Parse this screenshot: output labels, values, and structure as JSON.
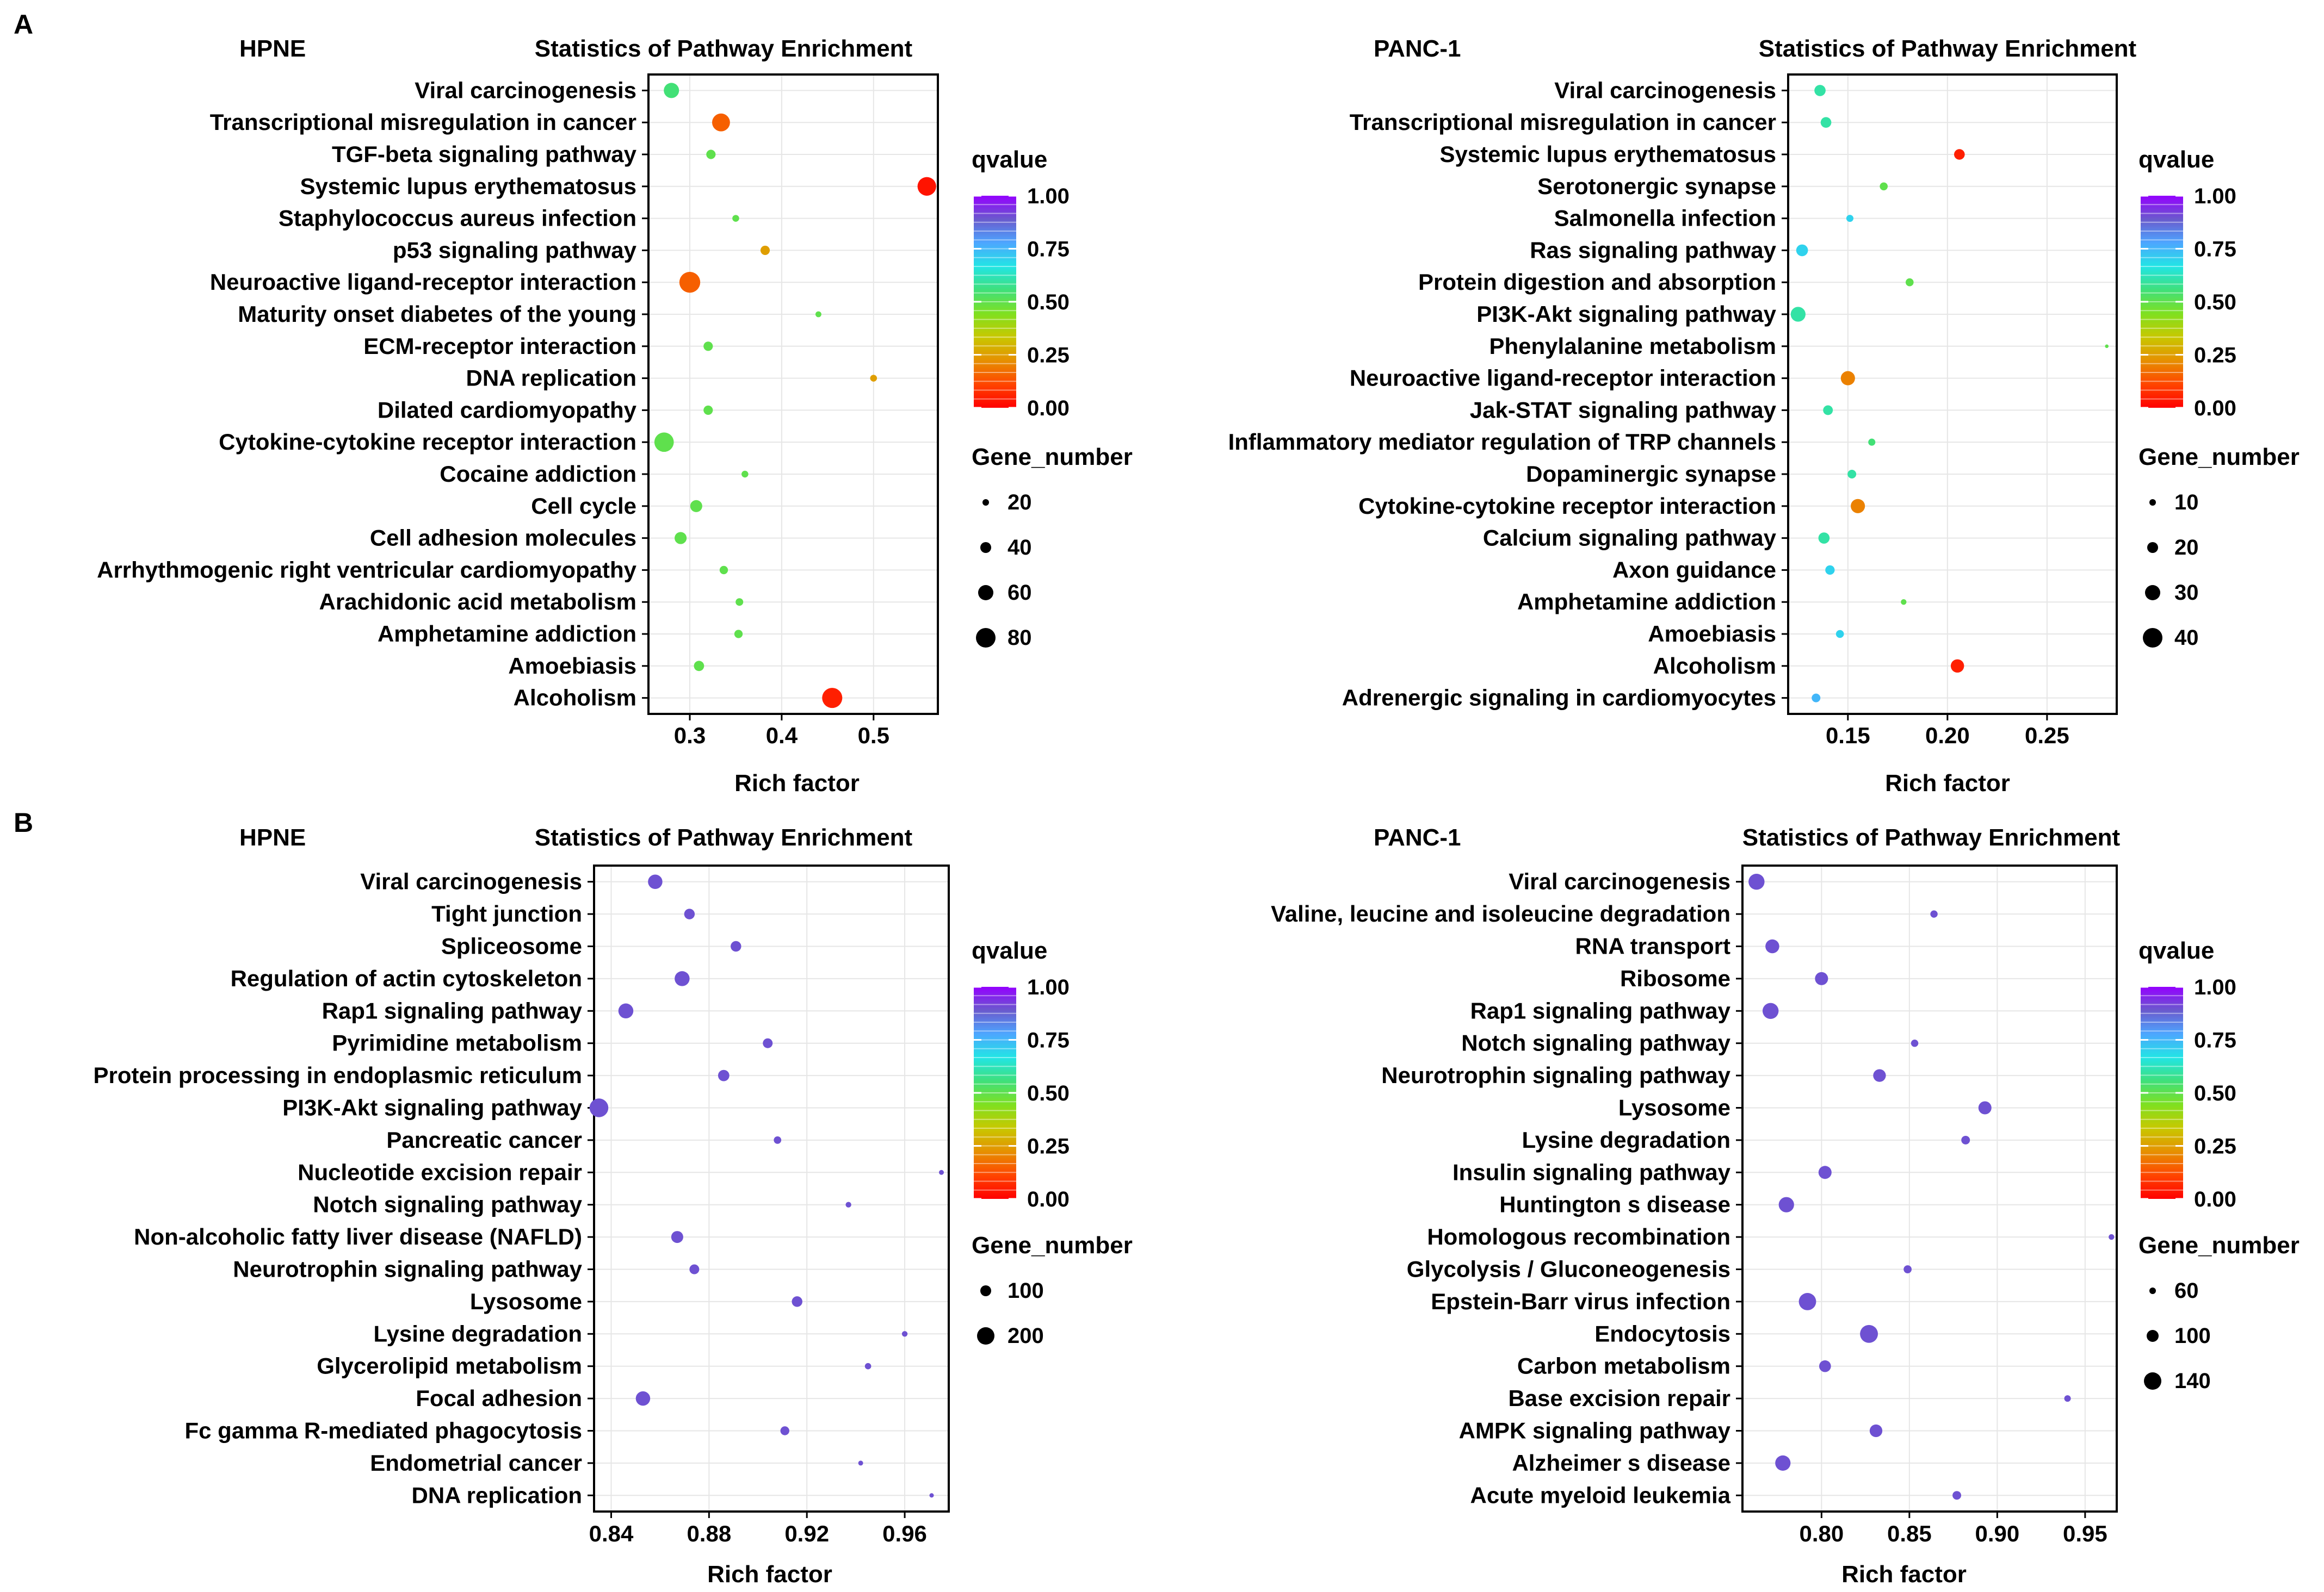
{
  "panels": [
    "A",
    "B"
  ],
  "colorbar": {
    "title": "qvalue",
    "ticks": [
      "1.00",
      "0.75",
      "0.50",
      "0.25",
      "0.00"
    ],
    "gradient": [
      "#9400FF",
      "#6A5ACD",
      "#4DA6FF",
      "#22E5E5",
      "#3FE07A",
      "#7FE020",
      "#C8C800",
      "#E69000",
      "#FF4500",
      "#FF0000"
    ]
  },
  "chart_data": [
    {
      "type": "scatter",
      "panel": "A",
      "cell": "HPNE",
      "title": "Statistics of Pathway Enrichment",
      "xlabel": "Rich factor",
      "xlim": [
        0.255,
        0.57
      ],
      "xticks": [
        0.3,
        0.4,
        0.5
      ],
      "xtick_labels": [
        "0.3",
        "0.4",
        "0.5"
      ],
      "size_legend_title": "Gene_number",
      "size_legend": [
        20,
        40,
        60,
        80
      ],
      "size_range": [
        5,
        90
      ],
      "categories": [
        "Viral carcinogenesis",
        "Transcriptional misregulation in cancer",
        "TGF-beta signaling pathway",
        "Systemic lupus erythematosus",
        "Staphylococcus aureus infection",
        "p53 signaling pathway",
        "Neuroactive ligand-receptor interaction",
        "Maturity onset diabetes of the young",
        "ECM-receptor interaction",
        "DNA replication",
        "Dilated cardiomyopathy",
        "Cytokine-cytokine receptor interaction",
        "Cocaine addiction",
        "Cell cycle",
        "Cell adhesion molecules",
        "Arrhythmogenic right ventricular cardiomyopathy",
        "Arachidonic acid metabolism",
        "Amphetamine addiction",
        "Amoebiasis",
        "Alcoholism"
      ],
      "rich_factor": [
        0.28,
        0.334,
        0.323,
        0.558,
        0.35,
        0.382,
        0.3,
        0.44,
        0.32,
        0.5,
        0.32,
        0.272,
        0.36,
        0.307,
        0.29,
        0.337,
        0.354,
        0.353,
        0.31,
        0.455
      ],
      "qvalue": [
        0.55,
        0.15,
        0.5,
        0.03,
        0.5,
        0.25,
        0.15,
        0.5,
        0.5,
        0.25,
        0.5,
        0.5,
        0.5,
        0.5,
        0.5,
        0.5,
        0.5,
        0.5,
        0.5,
        0.05
      ],
      "gene_number": [
        40,
        55,
        15,
        60,
        8,
        15,
        75,
        6,
        15,
        8,
        15,
        65,
        8,
        25,
        25,
        12,
        10,
        12,
        18,
        70
      ]
    },
    {
      "type": "scatter",
      "panel": "A",
      "cell": "PANC-1",
      "title": "Statistics of Pathway Enrichment",
      "xlabel": "Rich factor",
      "xlim": [
        0.12,
        0.285
      ],
      "xticks": [
        0.15,
        0.2,
        0.25
      ],
      "xtick_labels": [
        "0.15",
        "0.20",
        "0.25"
      ],
      "size_legend_title": "Gene_number",
      "size_legend": [
        10,
        20,
        30,
        40
      ],
      "size_range": [
        2,
        48
      ],
      "categories": [
        "Viral carcinogenesis",
        "Transcriptional misregulation in cancer",
        "Systemic lupus erythematosus",
        "Serotonergic synapse",
        "Salmonella infection",
        "Ras signaling pathway",
        "Protein digestion and absorption",
        "PI3K-Akt signaling pathway",
        "Phenylalanine metabolism",
        "Neuroactive ligand-receptor interaction",
        "Jak-STAT signaling pathway",
        "Inflammatory mediator regulation of TRP channels",
        "Dopaminergic synapse",
        "Cytokine-cytokine receptor interaction",
        "Calcium signaling pathway",
        "Axon guidance",
        "Amphetamine addiction",
        "Amoebiasis",
        "Alcoholism",
        "Adrenergic signaling in cardiomyocytes"
      ],
      "rich_factor": [
        0.136,
        0.139,
        0.206,
        0.168,
        0.151,
        0.127,
        0.181,
        0.125,
        0.28,
        0.15,
        0.14,
        0.162,
        0.152,
        0.155,
        0.138,
        0.141,
        0.178,
        0.146,
        0.205,
        0.134
      ],
      "qvalue": [
        0.6,
        0.6,
        0.05,
        0.5,
        0.7,
        0.7,
        0.5,
        0.6,
        0.5,
        0.2,
        0.6,
        0.55,
        0.6,
        0.2,
        0.6,
        0.7,
        0.5,
        0.7,
        0.05,
        0.75
      ],
      "gene_number": [
        20,
        18,
        18,
        10,
        8,
        22,
        10,
        35,
        2,
        32,
        15,
        8,
        12,
        32,
        20,
        14,
        5,
        10,
        28,
        12
      ]
    },
    {
      "type": "scatter",
      "panel": "B",
      "cell": "HPNE",
      "title": "Statistics of Pathway Enrichment",
      "xlabel": "Rich factor",
      "xlim": [
        0.833,
        0.978
      ],
      "xticks": [
        0.84,
        0.88,
        0.92,
        0.96
      ],
      "xtick_labels": [
        "0.84",
        "0.88",
        "0.92",
        "0.96"
      ],
      "size_legend_title": "Gene_number",
      "size_legend": [
        100,
        200
      ],
      "size_range": [
        3,
        240
      ],
      "categories": [
        "Viral carcinogenesis",
        "Tight junction",
        "Spliceosome",
        "Regulation of actin cytoskeleton",
        "Rap1 signaling pathway",
        "Pyrimidine metabolism",
        "Protein processing in endoplasmic reticulum",
        "PI3K-Akt signaling pathway",
        "Pancreatic cancer",
        "Nucleotide excision repair",
        "Notch signaling pathway",
        "Non-alcoholic fatty liver disease (NAFLD)",
        "Neurotrophin signaling pathway",
        "Lysosome",
        "Lysine degradation",
        "Glycerolipid metabolism",
        "Focal adhesion",
        "Fc gamma R-mediated phagocytosis",
        "Endometrial cancer",
        "DNA replication"
      ],
      "rich_factor": [
        0.858,
        0.872,
        0.891,
        0.869,
        0.846,
        0.904,
        0.886,
        0.835,
        0.908,
        0.975,
        0.937,
        0.867,
        0.874,
        0.916,
        0.96,
        0.945,
        0.853,
        0.911,
        0.942,
        0.971
      ],
      "qvalue": [
        0.9,
        0.9,
        0.9,
        0.9,
        0.9,
        0.9,
        0.9,
        0.9,
        0.9,
        0.9,
        0.9,
        0.9,
        0.9,
        0.9,
        0.9,
        0.9,
        0.9,
        0.9,
        0.9,
        0.9
      ],
      "gene_number": [
        130,
        70,
        70,
        140,
        140,
        60,
        80,
        220,
        35,
        15,
        20,
        90,
        60,
        70,
        20,
        25,
        130,
        50,
        15,
        12
      ]
    },
    {
      "type": "scatter",
      "panel": "B",
      "cell": "PANC-1",
      "title": "Statistics of Pathway Enrichment",
      "xlabel": "Rich factor",
      "xlim": [
        0.755,
        0.968
      ],
      "xticks": [
        0.8,
        0.85,
        0.9,
        0.95
      ],
      "xtick_labels": [
        "0.80",
        "0.85",
        "0.90",
        "0.95"
      ],
      "size_legend_title": "Gene_number",
      "size_legend": [
        60,
        100,
        140
      ],
      "size_range": [
        15,
        160
      ],
      "categories": [
        "Viral carcinogenesis",
        "Valine, leucine and isoleucine degradation",
        "RNA transport",
        "Ribosome",
        "Rap1 signaling pathway",
        "Notch signaling pathway",
        "Neurotrophin signaling pathway",
        "Lysosome",
        "Lysine degradation",
        "Insulin signaling pathway",
        "Huntington s disease",
        "Homologous recombination",
        "Glycolysis / Gluconeogenesis",
        "Epstein-Barr virus infection",
        "Endocytosis",
        "Carbon metabolism",
        "Base excision repair",
        "AMPK signaling pathway",
        "Alzheimer s disease",
        "Acute myeloid leukemia"
      ],
      "rich_factor": [
        0.763,
        0.864,
        0.772,
        0.8,
        0.771,
        0.853,
        0.833,
        0.893,
        0.882,
        0.802,
        0.78,
        0.965,
        0.849,
        0.792,
        0.827,
        0.802,
        0.94,
        0.831,
        0.778,
        0.877
      ],
      "qvalue": [
        0.9,
        0.9,
        0.9,
        0.9,
        0.9,
        0.9,
        0.9,
        0.9,
        0.9,
        0.9,
        0.9,
        0.9,
        0.9,
        0.9,
        0.9,
        0.9,
        0.9,
        0.9,
        0.9,
        0.9
      ],
      "gene_number": [
        120,
        25,
        90,
        80,
        120,
        25,
        75,
        80,
        35,
        80,
        110,
        15,
        30,
        140,
        150,
        65,
        20,
        75,
        110,
        35
      ]
    }
  ]
}
